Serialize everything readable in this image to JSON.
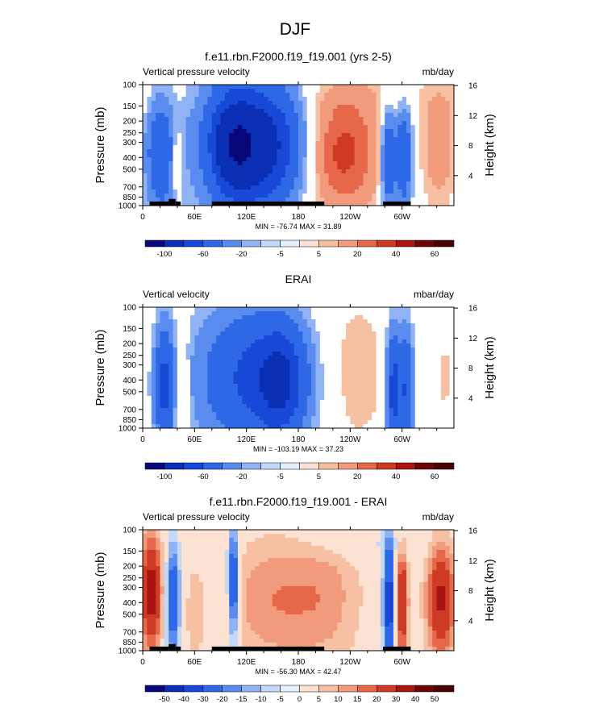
{
  "figure": {
    "title": "DJF"
  },
  "colors": {
    "pv_levels": [
      "#08087a",
      "#0b2fb4",
      "#1848d6",
      "#2d68e6",
      "#5a8cf0",
      "#90b3f5",
      "#c4d9fa",
      "#fbe2d3",
      "#f7c0a3",
      "#f19a7c",
      "#e66749",
      "#cf3a25",
      "#a8140f",
      "#6e0606"
    ],
    "terrain": "#000000"
  },
  "chart_data": [
    {
      "type": "heatmap",
      "title": "f.e11.rbn.F2000.f19_f19.001 (yrs 2-5)",
      "left_label": "Vertical pressure velocity",
      "right_label": "mb/day",
      "ylabel": "Pressure (mb)",
      "ylabel_right": "Height (km)",
      "x_ticks": [
        "0",
        "60E",
        "120E",
        "180",
        "120W",
        "60W"
      ],
      "x_tick_lon": [
        0,
        60,
        120,
        180,
        240,
        300
      ],
      "xlim": [
        0,
        360
      ],
      "y_ticks": [
        "100",
        "150",
        "200",
        "250",
        "300",
        "400",
        "500",
        "700",
        "850",
        "1000"
      ],
      "y_tick_p": [
        100,
        150,
        200,
        250,
        300,
        400,
        500,
        700,
        850,
        1000
      ],
      "ylim": [
        1000,
        100
      ],
      "y_scale": "log",
      "y_right_ticks": [
        "16",
        "12",
        "8",
        "4"
      ],
      "y_right_km": [
        16,
        12,
        8,
        4
      ],
      "stats": "MIN = -76.74  MAX = 31.89",
      "colorbar_labels": [
        "-100",
        "-60",
        "-20",
        "-5",
        "5",
        "20",
        "40",
        "60"
      ],
      "colorbar_label_slot": [
        1,
        3,
        5,
        7,
        9,
        11,
        13,
        15
      ],
      "terrain": [
        [
          8,
          14,
          925
        ],
        [
          30,
          38,
          880
        ],
        [
          14,
          30,
          925
        ],
        [
          38,
          44,
          925
        ],
        [
          80,
          210,
          925
        ],
        [
          278,
          310,
          925
        ]
      ],
      "features": [
        {
          "lon": 20,
          "p": 380,
          "slon": 11,
          "slog": 0.33,
          "v": -35
        },
        {
          "lon": 40,
          "p": 420,
          "slon": 4,
          "slog": 0.18,
          "v": 18
        },
        {
          "lon": 105,
          "p": 320,
          "slon": 18,
          "slog": 0.28,
          "v": -60
        },
        {
          "lon": 140,
          "p": 330,
          "slon": 28,
          "slog": 0.32,
          "v": -48
        },
        {
          "lon": 125,
          "p": 260,
          "slon": 50,
          "slog": 0.5,
          "v": -30
        },
        {
          "lon": 232,
          "p": 360,
          "slon": 26,
          "slog": 0.3,
          "v": 25
        },
        {
          "lon": 225,
          "p": 350,
          "slon": 42,
          "slog": 0.5,
          "v": 12
        },
        {
          "lon": 284,
          "p": 420,
          "slon": 6,
          "slog": 0.3,
          "v": -40
        },
        {
          "lon": 302,
          "p": 400,
          "slon": 7,
          "slog": 0.3,
          "v": -38
        },
        {
          "lon": 343,
          "p": 330,
          "slon": 14,
          "slog": 0.35,
          "v": 16
        },
        {
          "lon": 180,
          "p": 130,
          "slon": 200,
          "slog": 0.12,
          "v": 4
        }
      ]
    },
    {
      "type": "heatmap",
      "title": "ERAI",
      "left_label": "Vertical velocity",
      "right_label": "mbar/day",
      "ylabel": "Pressure (mb)",
      "ylabel_right": "Height (km)",
      "x_ticks": [
        "0",
        "60E",
        "120E",
        "180",
        "120W",
        "60W"
      ],
      "x_tick_lon": [
        0,
        60,
        120,
        180,
        240,
        300
      ],
      "xlim": [
        0,
        360
      ],
      "y_ticks": [
        "100",
        "150",
        "200",
        "250",
        "300",
        "400",
        "500",
        "700",
        "850",
        "1000"
      ],
      "y_tick_p": [
        100,
        150,
        200,
        250,
        300,
        400,
        500,
        700,
        850,
        1000
      ],
      "ylim": [
        1000,
        100
      ],
      "y_scale": "log",
      "y_right_ticks": [
        "16",
        "12",
        "8",
        "4"
      ],
      "y_right_km": [
        16,
        12,
        8,
        4
      ],
      "stats": "MIN = -103.19  MAX = 37.23",
      "colorbar_labels": [
        "-100",
        "-60",
        "-20",
        "-5",
        "5",
        "20",
        "40",
        "60"
      ],
      "colorbar_label_slot": [
        1,
        3,
        5,
        7,
        9,
        11,
        13,
        15
      ],
      "terrain": [],
      "features": [
        {
          "lon": 25,
          "p": 450,
          "slon": 8,
          "slog": 0.35,
          "v": -45
        },
        {
          "lon": 45,
          "p": 500,
          "slon": 6,
          "slog": 0.33,
          "v": 14
        },
        {
          "lon": 130,
          "p": 380,
          "slon": 45,
          "slog": 0.4,
          "v": -45
        },
        {
          "lon": 160,
          "p": 420,
          "slon": 18,
          "slog": 0.3,
          "v": -40
        },
        {
          "lon": 240,
          "p": 350,
          "slon": 35,
          "slog": 0.5,
          "v": 9
        },
        {
          "lon": 290,
          "p": 480,
          "slon": 6,
          "slog": 0.35,
          "v": -50
        },
        {
          "lon": 305,
          "p": 480,
          "slon": 6,
          "slog": 0.35,
          "v": -40
        },
        {
          "lon": 350,
          "p": 380,
          "slon": 10,
          "slog": 0.3,
          "v": 6
        }
      ]
    },
    {
      "type": "heatmap",
      "title": "f.e11.rbn.F2000.f19_f19.001 - ERAI",
      "left_label": "Vertical pressure velocity",
      "right_label": "mb/day",
      "ylabel": "Pressure (mb)",
      "ylabel_right": "Height (km)",
      "x_ticks": [
        "0",
        "60E",
        "120E",
        "180",
        "120W",
        "60W"
      ],
      "x_tick_lon": [
        0,
        60,
        120,
        180,
        240,
        300
      ],
      "xlim": [
        0,
        360
      ],
      "y_ticks": [
        "100",
        "150",
        "200",
        "250",
        "300",
        "400",
        "500",
        "700",
        "850",
        "1000"
      ],
      "y_tick_p": [
        100,
        150,
        200,
        250,
        300,
        400,
        500,
        700,
        850,
        1000
      ],
      "ylim": [
        1000,
        100
      ],
      "y_scale": "log",
      "y_right_ticks": [
        "16",
        "12",
        "8",
        "4"
      ],
      "y_right_km": [
        16,
        12,
        8,
        4
      ],
      "stats": "MIN = -56.30  MAX = 42.47",
      "colorbar_labels": [
        "-50",
        "-40",
        "-30",
        "-20",
        "-15",
        "-10",
        "-5",
        "0",
        "5",
        "10",
        "15",
        "20",
        "30",
        "40",
        "50"
      ],
      "colorbar_label_slot": [
        1,
        2,
        3,
        4,
        5,
        6,
        7,
        8,
        9,
        10,
        11,
        12,
        13,
        14,
        15
      ],
      "terrain": [
        [
          8,
          14,
          925
        ],
        [
          30,
          38,
          880
        ],
        [
          14,
          30,
          925
        ],
        [
          38,
          44,
          925
        ],
        [
          80,
          210,
          925
        ],
        [
          278,
          310,
          925
        ]
      ],
      "features": [
        {
          "lon": 10,
          "p": 330,
          "slon": 9,
          "slog": 0.35,
          "v": 35
        },
        {
          "lon": 35,
          "p": 380,
          "slon": 6,
          "slog": 0.35,
          "v": -30
        },
        {
          "lon": 60,
          "p": 500,
          "slon": 8,
          "slog": 0.3,
          "v": 8
        },
        {
          "lon": 105,
          "p": 280,
          "slon": 5,
          "slog": 0.35,
          "v": -35
        },
        {
          "lon": 150,
          "p": 380,
          "slon": 40,
          "slog": 0.4,
          "v": 14
        },
        {
          "lon": 215,
          "p": 350,
          "slon": 30,
          "slog": 0.45,
          "v": 10
        },
        {
          "lon": 285,
          "p": 400,
          "slon": 5,
          "slog": 0.35,
          "v": -40
        },
        {
          "lon": 300,
          "p": 400,
          "slon": 5,
          "slog": 0.35,
          "v": 30
        },
        {
          "lon": 345,
          "p": 380,
          "slon": 12,
          "slog": 0.35,
          "v": 32
        },
        {
          "lon": 250,
          "p": 130,
          "slon": 60,
          "slog": 0.1,
          "v": -6
        }
      ]
    }
  ]
}
